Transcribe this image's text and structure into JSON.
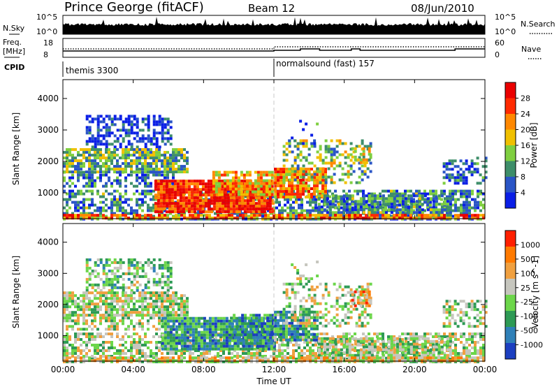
{
  "header": {
    "title": "Prince George (fitACF)",
    "beam": "Beam 12",
    "date": "08/Jun/2010"
  },
  "top_panel": {
    "left_label": "N.Sky",
    "right_label": "N.Search",
    "left_ticks": [
      "10^5",
      "10^0"
    ],
    "right_ticks": [
      "10^5",
      "10^0"
    ]
  },
  "freq_panel": {
    "left_label_1": "Freq.",
    "left_label_2": "[MHz]",
    "right_label": "Nave",
    "left_ticks": [
      "18",
      "8"
    ],
    "right_ticks": [
      "60",
      "0"
    ]
  },
  "cpid": {
    "label": "CPID",
    "modes": [
      "themis 3300",
      "normalsound (fast) 157"
    ],
    "mode_change_hours": [
      12.0
    ]
  },
  "xaxis": {
    "label": "Time UT",
    "ticks": [
      "00:00",
      "04:00",
      "08:00",
      "12:00",
      "16:00",
      "20:00",
      "00:00"
    ],
    "range_hours": [
      0,
      24
    ]
  },
  "chart_data": [
    {
      "type": "heatmap",
      "title": "",
      "xlabel": "Time UT",
      "ylabel": "Slant Range [km]",
      "ylim": [
        180,
        4600
      ],
      "yticks": [
        "1000",
        "2000",
        "3000",
        "4000"
      ],
      "colorbar_label": "Power [dB]",
      "colorbar_ticks": [
        "28",
        "24",
        "20",
        "16",
        "12",
        "8",
        "4"
      ],
      "colorbar_range": [
        0,
        30
      ],
      "colors": [
        "#0a1ee6",
        "#2a55c6",
        "#3e8e6a",
        "#7fcf40",
        "#f0c000",
        "#ff8800",
        "#ff2a00",
        "#ea0000"
      ],
      "regions": [
        {
          "t": [
            1.3,
            6.2
          ],
          "r": [
            2450,
            3480
          ],
          "density": 0.58,
          "level": 0.12
        },
        {
          "t": [
            0,
            7.0
          ],
          "r": [
            1700,
            2420
          ],
          "density": 0.75,
          "level": 0.38
        },
        {
          "t": [
            0,
            6.2
          ],
          "r": [
            1180,
            1700
          ],
          "density": 0.55,
          "level": 0.22
        },
        {
          "t": [
            0,
            24
          ],
          "r": [
            180,
            1100
          ],
          "density": 0.62,
          "level": 0.28
        },
        {
          "t": [
            5.2,
            12.0
          ],
          "r": [
            380,
            1420
          ],
          "density": 0.92,
          "level": 0.86
        },
        {
          "t": [
            8.5,
            12.0
          ],
          "r": [
            950,
            1700
          ],
          "density": 0.78,
          "level": 0.6
        },
        {
          "t": [
            12.0,
            15.0
          ],
          "r": [
            850,
            1800
          ],
          "density": 0.88,
          "level": 0.7
        },
        {
          "t": [
            14.5,
            22.0
          ],
          "r": [
            180,
            950
          ],
          "density": 0.72,
          "level": 0.3
        },
        {
          "t": [
            12.5,
            17.5
          ],
          "r": [
            1300,
            2700
          ],
          "density": 0.38,
          "level": 0.42
        },
        {
          "t": [
            16.4,
            17.4
          ],
          "r": [
            1950,
            2450
          ],
          "density": 0.55,
          "level": 0.55
        },
        {
          "t": [
            21.6,
            24
          ],
          "r": [
            1300,
            2150
          ],
          "density": 0.45,
          "level": 0.18
        },
        {
          "t": [
            12.8,
            14.6
          ],
          "r": [
            2600,
            3500
          ],
          "density": 0.15,
          "level": 0.2
        },
        {
          "t": [
            0,
            24
          ],
          "r": [
            180,
            330
          ],
          "density": 0.75,
          "level": 0.72
        }
      ]
    },
    {
      "type": "heatmap",
      "title": "",
      "xlabel": "Time UT",
      "ylabel": "Slant Range [km]",
      "ylim": [
        180,
        4600
      ],
      "yticks": [
        "1000",
        "2000",
        "3000",
        "4000"
      ],
      "colorbar_label": "Velocity [m s^-1]",
      "colorbar_ticks": [
        "1000",
        "500",
        "100",
        "25",
        "-25",
        "-100",
        "-500",
        "-1000"
      ],
      "colorbar_range": [
        -1000,
        1000
      ],
      "colors": [
        "#1c3fc0",
        "#2f80b8",
        "#2e9a55",
        "#6cd64a",
        "#c6c6be",
        "#f0a040",
        "#ff7a00",
        "#ff2000"
      ],
      "regions": [
        {
          "t": [
            1.3,
            6.2
          ],
          "r": [
            2450,
            3480
          ],
          "density": 0.55,
          "level": 0.42
        },
        {
          "t": [
            0,
            7.0
          ],
          "r": [
            1700,
            2420
          ],
          "density": 0.75,
          "level": 0.5
        },
        {
          "t": [
            0,
            6.2
          ],
          "r": [
            1180,
            1700
          ],
          "density": 0.55,
          "level": 0.5
        },
        {
          "t": [
            0,
            24
          ],
          "r": [
            180,
            1100
          ],
          "density": 0.62,
          "level": 0.5
        },
        {
          "t": [
            5.6,
            12.0
          ],
          "r": [
            600,
            1600
          ],
          "density": 0.9,
          "level": 0.28
        },
        {
          "t": [
            9.5,
            12.0
          ],
          "r": [
            950,
            1700
          ],
          "density": 0.8,
          "level": 0.22
        },
        {
          "t": [
            12.0,
            14.5
          ],
          "r": [
            850,
            1800
          ],
          "density": 0.85,
          "level": 0.3
        },
        {
          "t": [
            14.5,
            22.0
          ],
          "r": [
            180,
            950
          ],
          "density": 0.7,
          "level": 0.5
        },
        {
          "t": [
            12.5,
            17.5
          ],
          "r": [
            1300,
            2700
          ],
          "density": 0.38,
          "level": 0.5
        },
        {
          "t": [
            16.4,
            17.4
          ],
          "r": [
            1950,
            2450
          ],
          "density": 0.55,
          "level": 0.72
        },
        {
          "t": [
            21.6,
            24
          ],
          "r": [
            1300,
            2150
          ],
          "density": 0.45,
          "level": 0.5
        },
        {
          "t": [
            12.8,
            14.6
          ],
          "r": [
            2600,
            3500
          ],
          "density": 0.15,
          "level": 0.5
        },
        {
          "t": [
            0,
            24
          ],
          "r": [
            180,
            330
          ],
          "density": 0.7,
          "level": 0.62
        }
      ]
    }
  ]
}
